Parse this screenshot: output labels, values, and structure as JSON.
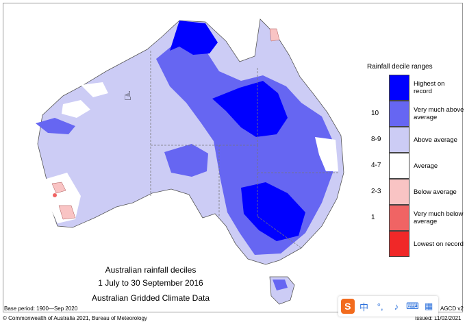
{
  "legend": {
    "title": "Rainfall decile ranges",
    "items": [
      {
        "range": "",
        "label": "Highest on record",
        "color": "#0000ff"
      },
      {
        "range": "10",
        "label": "Very much above average",
        "color": "#6666f2"
      },
      {
        "range": "8-9",
        "label": "Above average",
        "color": "#ccccf5"
      },
      {
        "range": "4-7",
        "label": "Average",
        "color": "#ffffff"
      },
      {
        "range": "2-3",
        "label": "Below average",
        "color": "#f9c4c4"
      },
      {
        "range": "1",
        "label": "Very much below average",
        "color": "#f06464"
      },
      {
        "range": "",
        "label": "Lowest on record",
        "color": "#f02828"
      }
    ]
  },
  "caption": {
    "line1": "Australian rainfall deciles",
    "line2": "1 July to 30 September 2016",
    "line3": "Australian Gridded Climate Data"
  },
  "footer": {
    "base_period": "Base period: 1900—Sep 2020",
    "copyright": "© Commonwealth of Australia 2021, Bureau of Meteorology",
    "product": "AGCD v2",
    "issued": "Issued: 11/02/2021"
  },
  "toolbar": {
    "logo": "S",
    "lang": "中",
    "punct": "°,",
    "mic_icon": "♪",
    "keyboard_icon": "⌨",
    "grid_icon": "▦"
  },
  "colors": {
    "highest": "#0000ff",
    "very_much_above": "#6666f2",
    "above": "#ccccf5",
    "average": "#ffffff",
    "below": "#f9c4c4",
    "very_much_below": "#f06464",
    "lowest": "#f02828"
  }
}
